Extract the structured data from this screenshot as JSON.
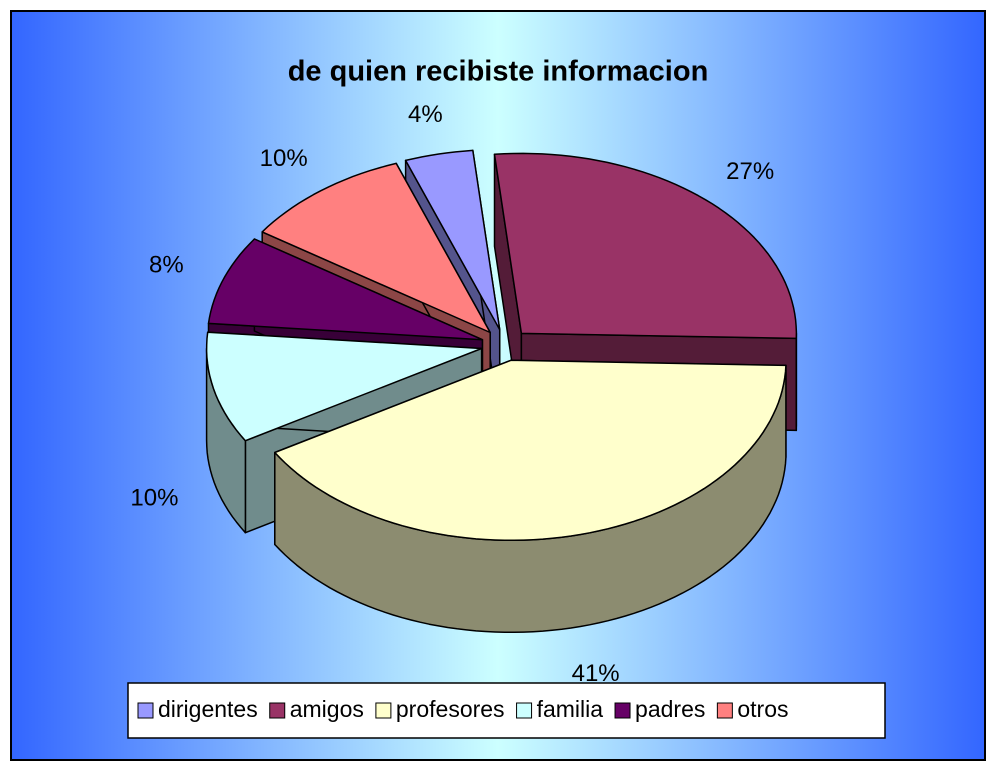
{
  "chart_data": {
    "type": "pie",
    "title": "de quien recibiste informacion",
    "categories": [
      "dirigentes",
      "amigos",
      "profesores",
      "familia",
      "padres",
      "otros"
    ],
    "values": [
      4,
      27,
      41,
      10,
      8,
      10
    ],
    "value_labels": [
      "4%",
      "27%",
      "41%",
      "10%",
      "8%",
      "10%"
    ],
    "colors": [
      "#9999ff",
      "#993366",
      "#ffffcc",
      "#ccffff",
      "#660066",
      "#ff8080"
    ],
    "legend": "bottom"
  }
}
